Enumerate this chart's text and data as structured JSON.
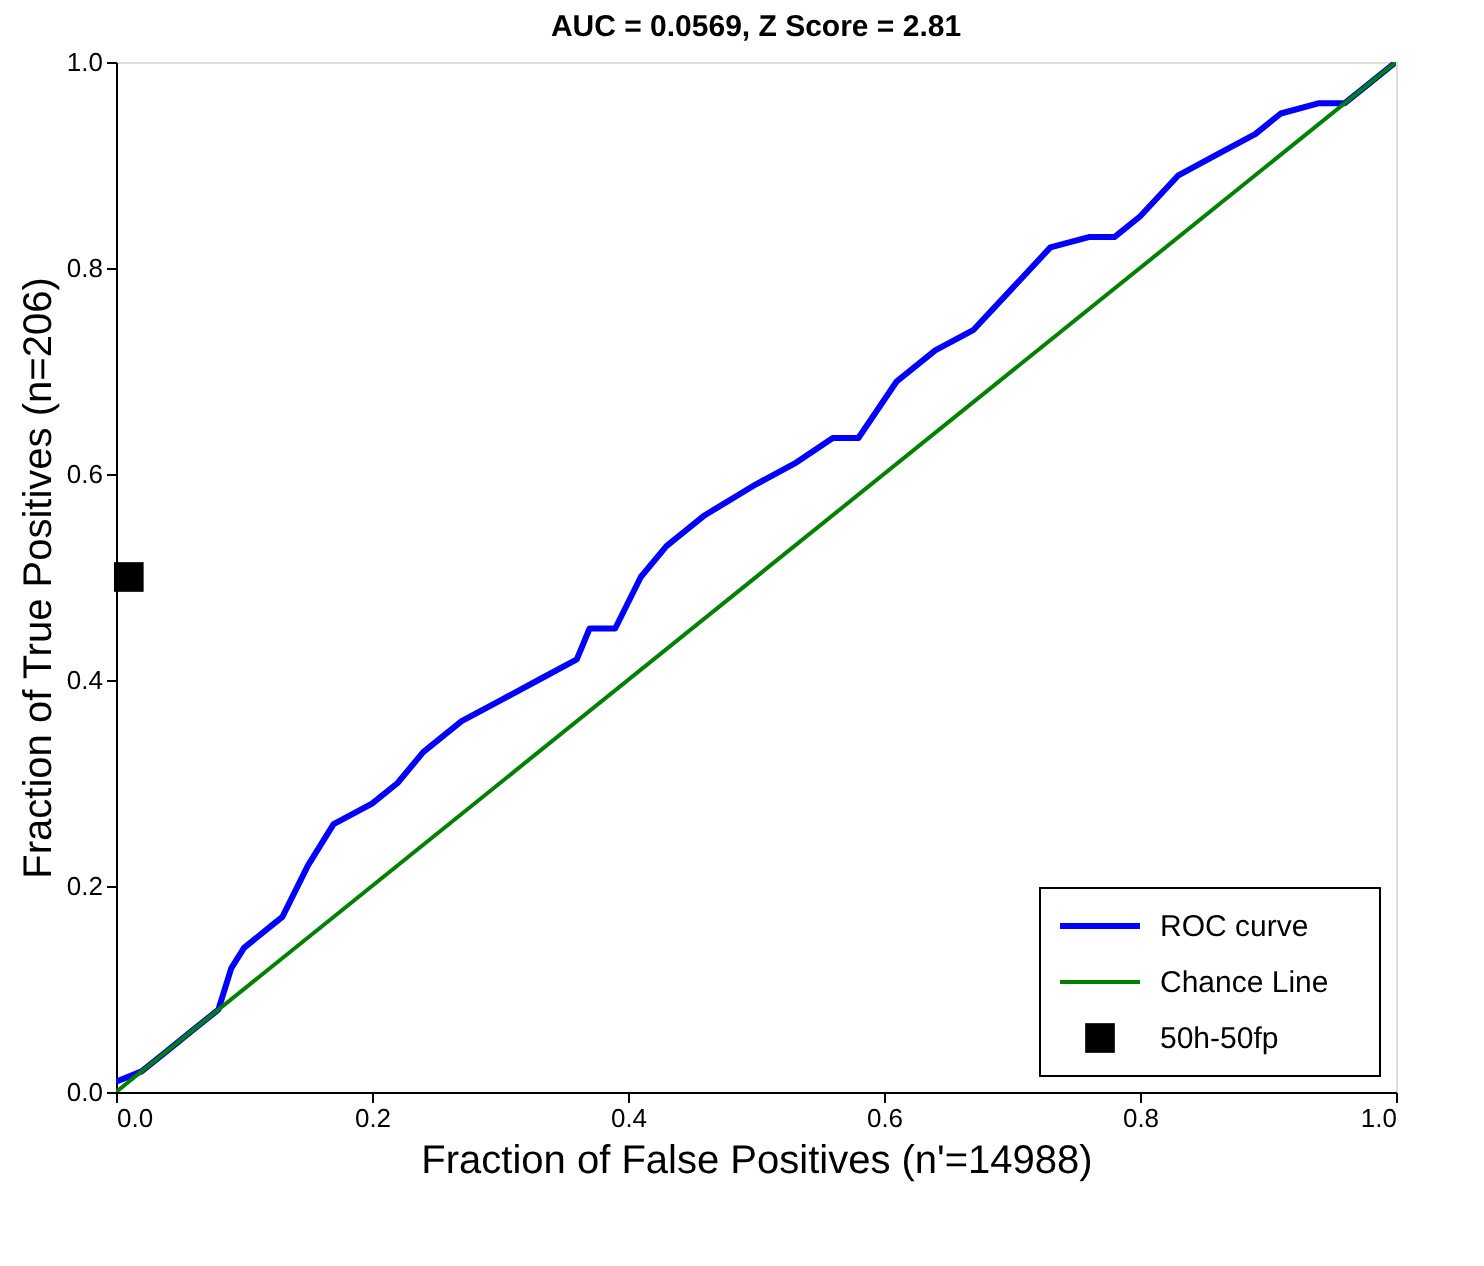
{
  "chart_data": {
    "type": "line",
    "title": "AUC = 0.0569, Z Score = 2.81",
    "xlabel": "Fraction of False Positives (n'=14988)",
    "ylabel": "Fraction of True Positives (n=206)",
    "xlim": [
      0,
      1
    ],
    "ylim": [
      0,
      1
    ],
    "xticks": [
      {
        "value": 0,
        "label": "0.0"
      },
      {
        "value": 0.2,
        "label": "0.2"
      },
      {
        "value": 0.4,
        "label": "0.4"
      },
      {
        "value": 0.6,
        "label": "0.6"
      },
      {
        "value": 0.8,
        "label": "0.8"
      },
      {
        "value": 1,
        "label": "1.0"
      }
    ],
    "yticks": [
      {
        "value": 0,
        "label": "0.0"
      },
      {
        "value": 0.2,
        "label": "0.2"
      },
      {
        "value": 0.4,
        "label": "0.4"
      },
      {
        "value": 0.6,
        "label": "0.6"
      },
      {
        "value": 0.8,
        "label": "0.8"
      },
      {
        "value": 1,
        "label": "1.0"
      }
    ],
    "grid": false,
    "legend": "bottom right",
    "series": [
      {
        "name": "ROC curve",
        "color": "#0000ff",
        "x": [
          0,
          0.02,
          0.04,
          0.06,
          0.08,
          0.09,
          0.1,
          0.12,
          0.13,
          0.15,
          0.17,
          0.2,
          0.22,
          0.24,
          0.27,
          0.3,
          0.33,
          0.36,
          0.37,
          0.39,
          0.41,
          0.43,
          0.46,
          0.5,
          0.53,
          0.56,
          0.58,
          0.61,
          0.64,
          0.67,
          0.7,
          0.73,
          0.76,
          0.78,
          0.8,
          0.83,
          0.86,
          0.89,
          0.91,
          0.94,
          0.96,
          0.98,
          1.0
        ],
        "values": [
          0.01,
          0.02,
          0.04,
          0.06,
          0.08,
          0.12,
          0.14,
          0.16,
          0.17,
          0.22,
          0.26,
          0.28,
          0.3,
          0.33,
          0.36,
          0.38,
          0.4,
          0.42,
          0.45,
          0.45,
          0.5,
          0.53,
          0.56,
          0.59,
          0.61,
          0.635,
          0.635,
          0.69,
          0.72,
          0.74,
          0.78,
          0.82,
          0.83,
          0.83,
          0.85,
          0.89,
          0.91,
          0.93,
          0.95,
          0.96,
          0.96,
          0.98,
          1.0
        ]
      },
      {
        "name": "Chance Line",
        "color": "#008000",
        "x": [
          0,
          1
        ],
        "values": [
          0,
          1
        ]
      },
      {
        "name": "50h-50fp",
        "type": "scatter",
        "marker": "square",
        "color": "#000000",
        "x": [
          0.01
        ],
        "values": [
          0.5
        ]
      }
    ]
  }
}
